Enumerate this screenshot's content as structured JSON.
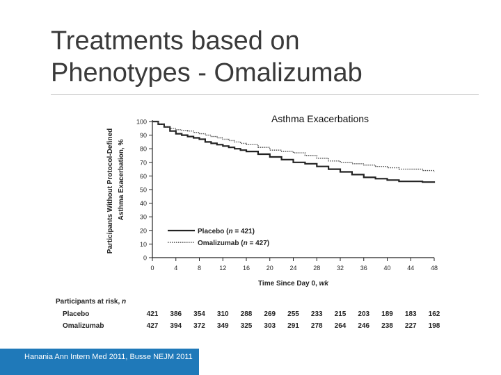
{
  "slide": {
    "title_line1": "Treatments based on",
    "title_line2": "Phenotypes - Omalizumab",
    "chart_heading": "Asthma Exacerbations",
    "footer": "Hanania Ann Intern Med 2011, Busse NEJM 2011"
  },
  "colors": {
    "title": "#3a3a3a",
    "footer_bar": "#1f79b9",
    "placebo_line": "#222222",
    "omalizumab_line": "#444444"
  },
  "chart_data": {
    "type": "line",
    "title": "Asthma Exacerbations",
    "xlabel": "Time Since Day 0, wk",
    "ylabel_line1": "Participants Without Protocol-Defined",
    "ylabel_line2": "Asthma Exacerbation, %",
    "xlim": [
      0,
      48
    ],
    "ylim": [
      0,
      100
    ],
    "xticks": [
      0,
      4,
      8,
      12,
      16,
      20,
      24,
      28,
      32,
      36,
      40,
      44,
      48
    ],
    "yticks": [
      0,
      10,
      20,
      30,
      40,
      50,
      60,
      70,
      80,
      90,
      100
    ],
    "legend": "bottom-left",
    "series": [
      {
        "name": "Placebo (n = 421)",
        "label_prefix": "Placebo (",
        "label_n": "n",
        "label_suffix": " = 421)",
        "style": "solid",
        "x": [
          0,
          1,
          2,
          3,
          4,
          5,
          6,
          7,
          8,
          9,
          10,
          11,
          12,
          13,
          14,
          15,
          16,
          18,
          20,
          22,
          24,
          26,
          28,
          30,
          32,
          34,
          36,
          38,
          40,
          42,
          44,
          46,
          48
        ],
        "y": [
          100,
          98,
          96,
          93,
          91,
          90,
          89,
          88,
          87,
          85,
          84,
          83,
          82,
          81,
          80,
          79,
          78,
          76,
          74,
          72,
          70,
          69,
          67,
          65,
          63,
          61,
          59,
          58,
          57,
          56,
          56,
          55.5,
          55
        ]
      },
      {
        "name": "Omalizumab (n = 427)",
        "label_prefix": "Omalizumab (",
        "label_n": "n",
        "label_suffix": " = 427)",
        "style": "dotted",
        "x": [
          0,
          1,
          2,
          3,
          4,
          5,
          6,
          7,
          8,
          9,
          10,
          11,
          12,
          13,
          14,
          15,
          16,
          18,
          20,
          22,
          24,
          26,
          28,
          30,
          32,
          34,
          36,
          38,
          40,
          42,
          44,
          46,
          48
        ],
        "y": [
          100,
          98,
          96,
          95,
          94,
          93.5,
          93,
          92,
          91,
          90,
          89,
          88,
          87,
          86,
          85,
          84,
          83,
          81,
          79,
          78,
          77,
          75,
          73,
          71,
          70,
          69,
          68,
          67,
          66,
          65,
          65,
          64,
          63
        ]
      }
    ],
    "at_risk": {
      "header_prefix": "Participants at risk, ",
      "header_n": "n",
      "weeks": [
        0,
        4,
        8,
        12,
        16,
        20,
        24,
        28,
        32,
        36,
        40,
        44,
        48
      ],
      "rows": [
        {
          "label": "Placebo",
          "values": [
            "421",
            "386",
            "354",
            "310",
            "288",
            "269",
            "255",
            "233",
            "215",
            "203",
            "189",
            "183",
            "162"
          ]
        },
        {
          "label": "Omalizumab",
          "values": [
            "427",
            "394",
            "372",
            "349",
            "325",
            "303",
            "291",
            "278",
            "264",
            "246",
            "238",
            "227",
            "198"
          ]
        }
      ]
    }
  }
}
